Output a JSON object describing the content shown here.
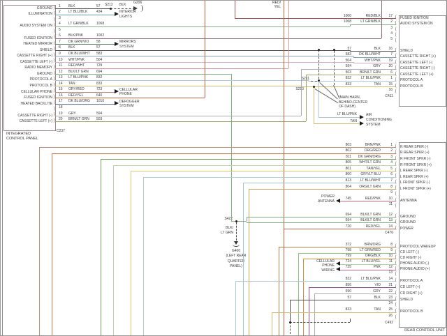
{
  "diagram": {
    "units": {
      "left": {
        "name_line1": "INTEGRATED",
        "name_line2": "CONTROL PANEL",
        "connector": "C237",
        "pins": [
          {
            "pin": "1",
            "label": "GROUND",
            "wire": "BLK",
            "circuit": "57"
          },
          {
            "pin": "2",
            "label": "ILLUMINATION",
            "wire": "LT BLU/BLK",
            "circuit": "434"
          },
          {
            "pin": "3",
            "label": "",
            "wire": "",
            "circuit": ""
          },
          {
            "pin": "4",
            "label": "AUDIO SYSTEM ON",
            "wire": "LT GRN/BLK",
            "circuit": "1068"
          },
          {
            "pin": "5",
            "label": "",
            "wire": "",
            "circuit": ""
          },
          {
            "pin": "6",
            "label": "FUSED IGNITION",
            "wire": "BLK/PNK",
            "circuit": "1002"
          },
          {
            "pin": "7",
            "label": "HEATED MIRROR",
            "wire": "DK GRN/VIO",
            "circuit": "58"
          },
          {
            "pin": "8",
            "label": "SHIELD",
            "wire": "BLK",
            "circuit": "57"
          },
          {
            "pin": "9",
            "label": "CASSETTE RIGHT (+)",
            "wire": "DK BLU/WHT",
            "circuit": "583"
          },
          {
            "pin": "10",
            "label": "CASSETTE LEFT (-)",
            "wire": "WHT/PNK",
            "circuit": "504"
          },
          {
            "pin": "11",
            "label": "RADIO MEMORY",
            "wire": "RED/WHT",
            "circuit": "729"
          },
          {
            "pin": "12",
            "label": "GROUND",
            "wire": "BLK/LT GRN",
            "circuit": "694"
          },
          {
            "pin": "13",
            "label": "PROTOCOL A",
            "wire": "LT BLU/PNK",
            "circuit": "832"
          },
          {
            "pin": "14",
            "label": "PROTOCOL B",
            "wire": "TAN",
            "circuit": "833"
          },
          {
            "pin": "15",
            "label": "CELLULAR PHONE",
            "wire": "GRY/RED",
            "circuit": "723"
          },
          {
            "pin": "16",
            "label": "FUSED IGNITION",
            "wire": "RED/YEL",
            "circuit": "640"
          },
          {
            "pin": "17",
            "label": "HEATED BACKLITE",
            "wire": "DK BLU/ORG",
            "circuit": "1010"
          },
          {
            "pin": "18",
            "label": "",
            "wire": "",
            "circuit": ""
          },
          {
            "pin": "19",
            "label": "CASSETTE RIGHT (-)",
            "wire": "GRY",
            "circuit": "594"
          },
          {
            "pin": "20",
            "label": "CASSETTE LEFT (+)",
            "wire": "BRN/LT GRN",
            "circuit": "503"
          }
        ]
      },
      "right_top": {
        "connector": "C411",
        "pins": [
          {
            "pin": "17",
            "label": "FUSED IGNITION",
            "wire": "RED/BLK",
            "circuit": "1000"
          },
          {
            "pin": "2",
            "label": "AUDIO SYSTEM ON",
            "wire": "LT GRN/BLK",
            "circuit": "1068"
          },
          {
            "pin": "3",
            "label": "",
            "wire": "",
            "circuit": ""
          },
          {
            "pin": "4",
            "label": "",
            "wire": "",
            "circuit": ""
          },
          {
            "pin": "5",
            "label": "",
            "wire": "",
            "circuit": ""
          },
          {
            "pin": "16",
            "label": "SHIELD",
            "wire": "BLK",
            "circuit": "57"
          },
          {
            "pin": "7",
            "label": "CASSETTE RIGHT (+)",
            "wire": "DK BLU/WHT",
            "circuit": "583"
          },
          {
            "pin": "19",
            "label": "CASSETTE LEFT (-)",
            "wire": "WHT/PNK",
            "circuit": "504"
          },
          {
            "pin": "20",
            "label": "CASSETTE RIGHT (-)",
            "wire": "GRY",
            "circuit": "594"
          },
          {
            "pin": "6",
            "label": "CASSETTE LEFT (+)",
            "wire": "BRN/LT GRN",
            "circuit": "503"
          },
          {
            "pin": "1",
            "label": "PROTOCOL A",
            "wire": "LT BLU/PNK",
            "circuit": "832"
          },
          {
            "pin": "15",
            "label": "PROTOCOL B",
            "wire": "TAN",
            "circuit": "833"
          },
          {
            "pin": "16",
            "label": "",
            "wire": "",
            "circuit": ""
          }
        ]
      },
      "right_bottom": {
        "name": "REAR CONTROL UNIT",
        "connector_mid": "C476",
        "connector_bottom": "C492",
        "pins": [
          {
            "pin": "1",
            "label": "R REAR SPKR (-)",
            "wire": "BRN/PNK",
            "circuit": "803"
          },
          {
            "pin": "2",
            "label": "R REAR SPKR (+)",
            "wire": "ORG/RED",
            "circuit": "802"
          },
          {
            "pin": "3",
            "label": "R FRONT SPKR (-)",
            "wire": "DK GRN/ORG",
            "circuit": "811"
          },
          {
            "pin": "4",
            "label": "R FRONT SPKR (+)",
            "wire": "WHT/LT GRN",
            "circuit": "805"
          },
          {
            "pin": "5",
            "label": "L REAR SPKR (-)",
            "wire": "TAN/YEL",
            "circuit": "801"
          },
          {
            "pin": "6",
            "label": "L REAR SPKR (+)",
            "wire": "GRY/LT BLU",
            "circuit": "800"
          },
          {
            "pin": "7",
            "label": "L FRONT SPKR (-)",
            "wire": "LT BLU/WHT",
            "circuit": "813"
          },
          {
            "pin": "8",
            "label": "L FRONT SPKR (+)",
            "wire": "ORG/LT GRN",
            "circuit": "804"
          },
          {
            "pin": "9",
            "label": "",
            "wire": "",
            "circuit": ""
          },
          {
            "pin": "10",
            "label": "ANTENNA",
            "wire": "RED/PNK",
            "circuit": "745"
          },
          {
            "pin": "11",
            "label": "",
            "wire": "",
            "circuit": ""
          },
          {
            "pin": "12",
            "label": "GROUND",
            "wire": "BLK/LT GRN",
            "circuit": "694"
          },
          {
            "pin": "13",
            "label": "GROUND",
            "wire": "BLK/LT GRN",
            "circuit": "694"
          },
          {
            "pin": "14",
            "label": "POWER",
            "wire": "RED/YEL",
            "circuit": "720"
          },
          {
            "pin": "8",
            "label": "PROTOCOL WAKEUP",
            "wire": "BRN/ORG",
            "circuit": "372"
          },
          {
            "pin": "9",
            "label": "CD LEFT (-)",
            "wire": "LT GRN/RED",
            "circuit": "798"
          },
          {
            "pin": "10",
            "label": "CD RIGHT (-)",
            "wire": "ORG/BLK",
            "circuit": "799"
          },
          {
            "pin": "11",
            "label": "PHONE AUDIO (-)",
            "wire": "LT BLU/YEL",
            "circuit": "724"
          },
          {
            "pin": "12",
            "label": "PHONE AUDIO (+)",
            "wire": "PNK",
            "circuit": "725"
          },
          {
            "pin": "13",
            "label": "",
            "wire": "",
            "circuit": ""
          },
          {
            "pin": "14",
            "label": "PROTOCOL A",
            "wire": "LT BLU/PNK",
            "circuit": "832"
          },
          {
            "pin": "21",
            "label": "CD LEFT (+)",
            "wire": "VIO",
            "circuit": "856"
          },
          {
            "pin": "22",
            "label": "CD RIGHT (+)",
            "wire": "GRY",
            "circuit": "690"
          },
          {
            "pin": "23",
            "label": "SHIELD",
            "wire": "BLK",
            "circuit": "57"
          },
          {
            "pin": "24",
            "label": "",
            "wire": "",
            "circuit": ""
          },
          {
            "pin": "25",
            "label": "PROTOCOL B",
            "wire": "TAN",
            "circuit": "833"
          },
          {
            "pin": "26",
            "label": "",
            "wire": "",
            "circuit": ""
          }
        ]
      }
    },
    "splices": {
      "s212": "S212",
      "s211": "S211",
      "s213": "S213",
      "s422": "S422"
    },
    "grounds": {
      "g206": "G206",
      "g400": "G400",
      "g400_note_line1": "(LEFT REAR",
      "g400_note_line2": "QUARTER",
      "g400_note_line3": "PANEL)"
    },
    "wire_tags": {
      "s212_blk": "BLK",
      "red_yel_line1": "RED/",
      "red_yel_line2": "YEL",
      "g400_wire_line1": "BLK/",
      "g400_wire_line2": "LT GRN",
      "ac_tag1": "LT BLU/PNK",
      "ac_tag2": "TAN"
    },
    "system_labels": {
      "interior_lights_1": "INTERIOR",
      "interior_lights_2": "LIGHTS",
      "mirrors_1": "MIRRORS",
      "mirrors_2": "SYSTEM",
      "cellular_1": "CELLULAR",
      "cellular_2": "PHONE",
      "defogger_1": "DEFOGGER",
      "defogger_2": "SYSTEM",
      "ac_1": "AIR",
      "ac_2": "CONDITIONING",
      "ac_3": "SYSTEM",
      "power_antenna_1": "POWER",
      "power_antenna_2": "ANTENNA",
      "phone_wiring_1": "CELLULAR",
      "phone_wiring_2": "PHONE",
      "phone_wiring_3": "WIRING"
    },
    "notes": {
      "main_harn_1": "(MAIN HARN,",
      "main_harn_2": "BEHIND-CENTER",
      "main_harn_3": "OF DASH)"
    },
    "palette": {
      "BLK": "#4f4f4f",
      "LT BLU/BLK": "#62a3a8",
      "LT GRN/BLK": "#85b285",
      "BLK/PNK": "#8d6f73",
      "DK GRN/VIO": "#53805c",
      "DK BLU/WHT": "#84a3c4",
      "WHT/PNK": "#d9adb4",
      "RED/WHT": "#d998a0",
      "BLK/LT GRN": "#7fae7f",
      "LT BLU/PNK": "#adc9da",
      "TAN": "#d3ba6e",
      "GRY/RED": "#c47f7f",
      "RED/YEL": "#c2603f",
      "DK BLU/ORG": "#56699a",
      "GRY": "#ababab",
      "BRN/LT GRN": "#97a566",
      "RED/BLK": "#a05050",
      "BRN/PNK": "#bd8f7c",
      "ORG/RED": "#cb7446",
      "DK GRN/ORG": "#6f9e59",
      "WHT/LT GRN": "#bdd5ad",
      "TAN/YEL": "#dcc96e",
      "GRY/LT BLU": "#adccd3",
      "LT BLU/WHT": "#a3c4d6",
      "ORG/LT GRN": "#cda55e",
      "RED/PNK": "#cc6675",
      "BRN/ORG": "#b37f44",
      "LT GRN/RED": "#93bd7f",
      "ORG/BLK": "#d28f3f",
      "LT BLU/YEL": "#aed3a3",
      "PNK": "#cc637f",
      "VIO": "#8f4f8f"
    }
  }
}
